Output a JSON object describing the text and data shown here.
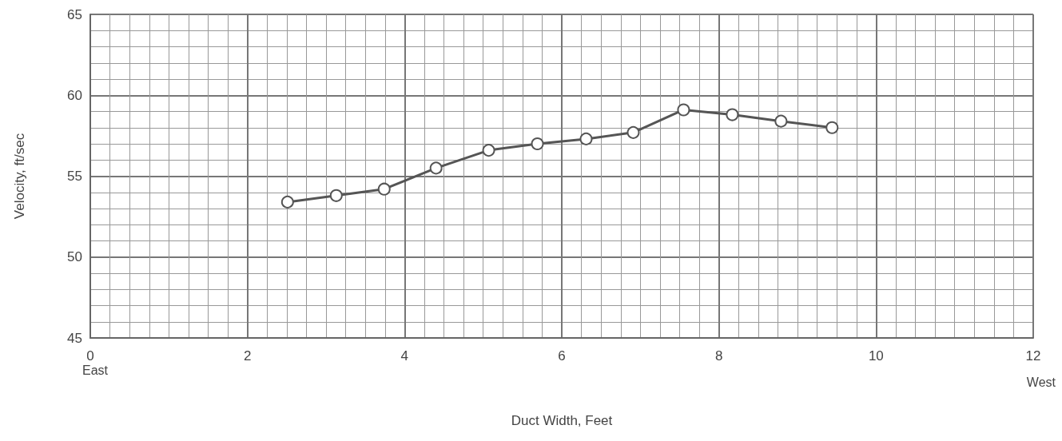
{
  "chart_data": {
    "type": "line",
    "xlabel": "Duct Width, Feet",
    "ylabel": "Velocity, ft/sec",
    "x": [
      2.51,
      3.13,
      3.74,
      4.4,
      5.07,
      5.69,
      6.31,
      6.91,
      7.55,
      8.17,
      8.79,
      9.44
    ],
    "series": [
      {
        "color": "#555555",
        "values": [
          53.4,
          53.8,
          54.2,
          55.5,
          56.6,
          57.0,
          57.3,
          57.7,
          59.1,
          58.8,
          58.4,
          58.0
        ]
      }
    ],
    "xlim": [
      0,
      12
    ],
    "xticks": [
      0,
      2,
      4,
      6,
      8,
      10,
      12
    ],
    "ylim": [
      45,
      65
    ],
    "yticks": [
      45,
      50,
      55,
      60,
      65
    ],
    "grid": true,
    "marker": "circle",
    "line_style": "solid",
    "annotations": [
      "East",
      "West"
    ]
  }
}
